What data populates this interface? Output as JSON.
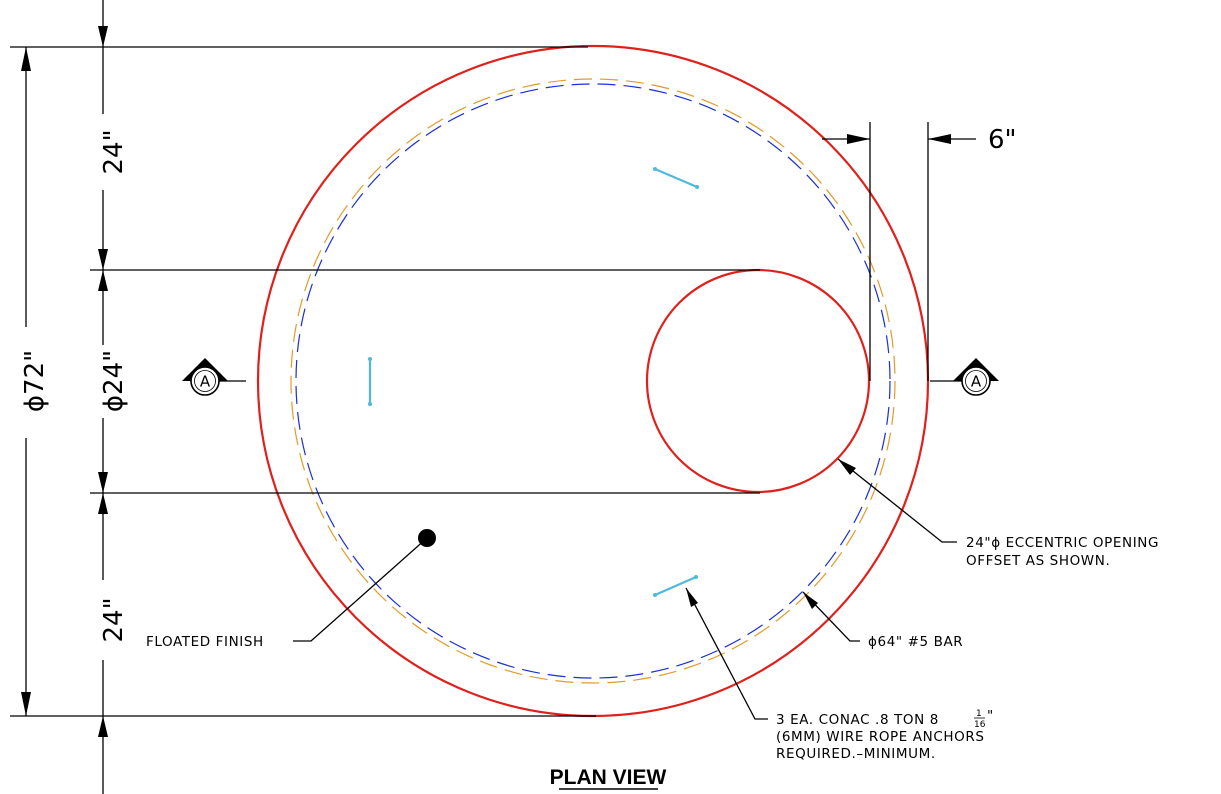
{
  "dimensions": {
    "overall_diameter": "ϕ72\"",
    "top_segment": "24\"",
    "opening_diameter": "ϕ24\"",
    "bottom_segment": "24\"",
    "offset": "6\""
  },
  "section_markers": {
    "left": "A",
    "right": "A"
  },
  "notes": {
    "eccentric_opening_line1": "24\"ϕ ECCENTRIC OPENING",
    "eccentric_opening_line2": "OFFSET AS SHOWN.",
    "rebar": "ϕ64\" #5 BAR",
    "floated_finish": "FLOATED FINISH",
    "anchors_line1": "3 EA. CONAC .8 TON 8",
    "anchors_frac_num": "1",
    "anchors_frac_den": "16",
    "anchors_inch": "\"",
    "anchors_line2": "(6MM) WIRE ROPE ANCHORS",
    "anchors_line3": "REQUIRED.–MINIMUM."
  },
  "title": "PLAN VIEW",
  "colors": {
    "outline": "#e0201c",
    "rebar_blue": "#1a2fd6",
    "rebar_orange": "#e39a2b",
    "anchors": "#4fb9dd"
  }
}
